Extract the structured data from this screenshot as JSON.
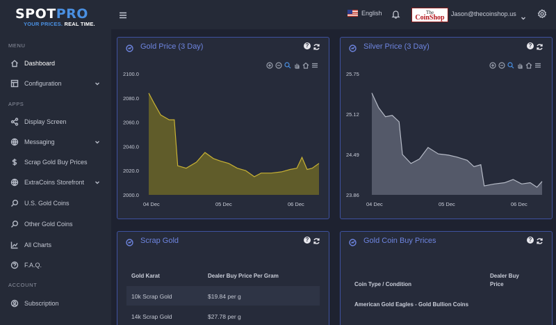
{
  "brand": {
    "name_part1": "SPOT",
    "name_part2": "PRO",
    "tagline_part1": "YOUR PRICES.",
    "tagline_part2": "REAL TIME."
  },
  "sidebar": {
    "menu_label": "MENU",
    "apps_label": "APPS",
    "account_label": "ACCOUNT",
    "items": [
      {
        "label": "Dashboard",
        "icon": "home-icon"
      },
      {
        "label": "Configuration",
        "icon": "window-icon"
      },
      {
        "label": "Display Screen",
        "icon": "share-icon"
      },
      {
        "label": "Messaging",
        "icon": "globe-icon"
      },
      {
        "label": "Scrap Gold Buy Prices",
        "icon": "dollar-icon"
      },
      {
        "label": "ExtraCoins Storefront",
        "icon": "globe-icon"
      },
      {
        "label": "U.S. Gold Coins",
        "icon": "search-icon"
      },
      {
        "label": "Other Gold Coins",
        "icon": "search-icon"
      },
      {
        "label": "All Charts",
        "icon": "chart-icon"
      },
      {
        "label": "F.A.Q.",
        "icon": "help-icon"
      },
      {
        "label": "Subscription",
        "icon": "user-icon"
      }
    ]
  },
  "header": {
    "language": "English",
    "shop_logo_the": "The",
    "shop_logo_name": "CoinShop",
    "user_email": "Jason@thecoinshop.us"
  },
  "gold_card": {
    "title": "Gold Price (3 Day)"
  },
  "silver_card": {
    "title": "Silver Price (3 Day)"
  },
  "scrap_card": {
    "title": "Scrap Gold",
    "columns": [
      "Gold Karat",
      "Dealer Buy Price Per Gram"
    ],
    "rows": [
      [
        "10k  Scrap Gold",
        "$19.84 per g"
      ],
      [
        "14k Scrap Gold",
        "$27.78 per g"
      ]
    ]
  },
  "coin_card": {
    "title": "Gold Coin Buy Prices",
    "columns": [
      "Coin Type / Condition",
      "Dealer Buy Price"
    ],
    "first_row": "American Gold Eagles - Gold Bullion Coins"
  },
  "chart_data": [
    {
      "type": "area",
      "title": "Gold Price (3 Day)",
      "x_ticks": [
        "04 Dec",
        "05 Dec",
        "06 Dec"
      ],
      "y_ticks": [
        2000.0,
        2020.0,
        2040.0,
        2060.0,
        2080.0,
        2100.0
      ],
      "ylim": [
        2000,
        2100
      ],
      "color": "#c8b234",
      "fill": "#6b6528",
      "x": [
        0,
        0.03,
        0.07,
        0.12,
        0.15,
        0.17,
        0.22,
        0.28,
        0.33,
        0.38,
        0.42,
        0.47,
        0.52,
        0.57,
        0.62,
        0.66,
        0.72,
        0.78,
        0.83,
        0.87,
        0.9,
        0.93,
        0.96,
        1.0
      ],
      "values": [
        2084,
        2076,
        2066,
        2062,
        2062,
        2024,
        2022,
        2027,
        2035,
        2030,
        2028,
        2026,
        2022,
        2020,
        2015,
        2018,
        2018,
        2019,
        2021,
        2022,
        2031,
        2021,
        2022,
        2026
      ]
    },
    {
      "type": "area",
      "title": "Silver Price (3 Day)",
      "x_ticks": [
        "04 Dec",
        "05 Dec",
        "06 Dec"
      ],
      "y_ticks": [
        23.86,
        24.49,
        25.12,
        25.75
      ],
      "ylim": [
        23.86,
        25.75
      ],
      "color": "#b7bcc8",
      "fill": "#5d6272",
      "x": [
        0,
        0.04,
        0.08,
        0.12,
        0.16,
        0.18,
        0.23,
        0.28,
        0.33,
        0.39,
        0.45,
        0.5,
        0.56,
        0.6,
        0.64,
        0.66,
        0.72,
        0.78,
        0.83,
        0.88,
        0.93,
        0.97,
        1.0
      ],
      "values": [
        25.45,
        25.22,
        25.08,
        25.1,
        25.0,
        24.49,
        24.35,
        24.42,
        24.6,
        24.5,
        24.48,
        24.45,
        24.4,
        24.3,
        24.33,
        24.0,
        24.03,
        24.05,
        24.1,
        24.03,
        24.05,
        23.98,
        24.07
      ]
    }
  ]
}
